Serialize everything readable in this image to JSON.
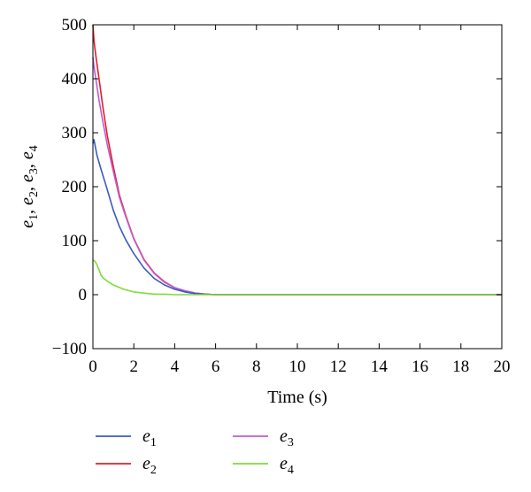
{
  "chart_data": {
    "type": "line",
    "xlabel": "Time (s)",
    "ylabel": "e1, e2, e3, e4",
    "xlim": [
      0,
      20
    ],
    "ylim": [
      -100,
      500
    ],
    "xticks": [
      0,
      2,
      4,
      6,
      8,
      10,
      12,
      14,
      16,
      18,
      20
    ],
    "yticks": [
      -100,
      0,
      100,
      200,
      300,
      400,
      500
    ],
    "grid": false,
    "legend_position": "bottom",
    "series": [
      {
        "name": "e1",
        "color": "#3a5bbf",
        "x": [
          0,
          0.05,
          0.2,
          0.4,
          0.6,
          0.8,
          1.0,
          1.3,
          1.6,
          2.0,
          2.5,
          3.0,
          3.5,
          4.0,
          4.5,
          5.0,
          5.5,
          6.0,
          8.0,
          10,
          12,
          14,
          16,
          18,
          20
        ],
        "y": [
          280,
          287,
          258,
          232,
          207,
          182,
          156,
          126,
          102,
          76,
          49,
          30,
          18,
          10,
          5,
          2,
          1,
          0,
          0,
          0,
          0,
          0,
          0,
          0,
          0
        ]
      },
      {
        "name": "e2",
        "color": "#e0202a",
        "x": [
          0,
          0.05,
          0.15,
          0.3,
          0.5,
          0.7,
          1.0,
          1.3,
          1.6,
          2.0,
          2.5,
          3.0,
          3.5,
          4.0,
          4.5,
          5.0,
          5.5,
          6.0,
          8.0,
          10,
          12,
          14,
          16,
          18,
          20
        ],
        "y": [
          500,
          470,
          440,
          400,
          345,
          295,
          237,
          184,
          147,
          104,
          65,
          40,
          24,
          13,
          7,
          3,
          1,
          0,
          0,
          0,
          0,
          0,
          0,
          0,
          0
        ]
      },
      {
        "name": "e3",
        "color": "#c05ad0",
        "x": [
          0,
          0.05,
          0.15,
          0.3,
          0.5,
          0.7,
          1.0,
          1.3,
          1.6,
          2.0,
          2.5,
          3.0,
          3.5,
          4.0,
          4.5,
          5.0,
          5.5,
          6.0,
          8.0,
          10,
          12,
          14,
          16,
          18,
          20
        ],
        "y": [
          440,
          422,
          398,
          360,
          318,
          278,
          228,
          180,
          145,
          103,
          64,
          39,
          23,
          13,
          7,
          3,
          1,
          0,
          0,
          0,
          0,
          0,
          0,
          0,
          0
        ]
      },
      {
        "name": "e4",
        "color": "#7ddc3a",
        "x": [
          0,
          0.1,
          0.2,
          0.3,
          0.4,
          0.5,
          0.7,
          1.0,
          1.5,
          2.0,
          2.5,
          3.0,
          3.5,
          4.0,
          5.0,
          6.0,
          8.0,
          10,
          12,
          14,
          16,
          18,
          20
        ],
        "y": [
          64,
          62,
          55,
          46,
          36,
          31,
          25,
          18,
          10,
          5,
          3,
          1,
          1,
          0,
          0,
          0,
          0,
          0,
          0,
          0,
          0,
          0,
          0
        ]
      }
    ]
  }
}
